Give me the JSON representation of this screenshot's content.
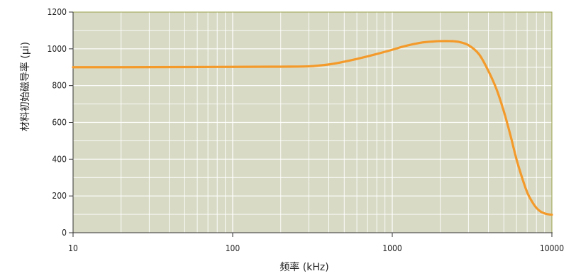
{
  "chart_data": {
    "type": "line",
    "title": "",
    "xlabel": "频率 (kHz)",
    "ylabel": "材料初始磁导率 (μi)",
    "x_scale": "log",
    "xlim": [
      10,
      10000
    ],
    "ylim": [
      0,
      1200
    ],
    "grid": true,
    "x_tick_labels": [
      "10",
      "100",
      "1000",
      "10000"
    ],
    "y_tick_labels": [
      "0",
      "200",
      "400",
      "600",
      "800",
      "1000",
      "1200"
    ],
    "series": [
      {
        "color": "#f39a2b",
        "x": [
          10,
          20,
          50,
          100,
          200,
          300,
          400,
          500,
          600,
          800,
          1000,
          1200,
          1500,
          1800,
          2000,
          2300,
          2600,
          3000,
          3500,
          4000,
          4500,
          5000,
          5500,
          6000,
          6500,
          7000,
          7500,
          8000,
          8500,
          9000,
          9500,
          10000
        ],
        "y": [
          900,
          900,
          901,
          902,
          903,
          905,
          915,
          930,
          945,
          972,
          995,
          1015,
          1033,
          1040,
          1042,
          1042,
          1038,
          1020,
          970,
          880,
          780,
          660,
          530,
          400,
          300,
          220,
          170,
          135,
          115,
          105,
          100,
          98
        ]
      }
    ]
  },
  "colors": {
    "plot_background": "#d8dac5",
    "grid": "#ffffff",
    "frame": "#9aa24a",
    "axis": "#333333"
  }
}
